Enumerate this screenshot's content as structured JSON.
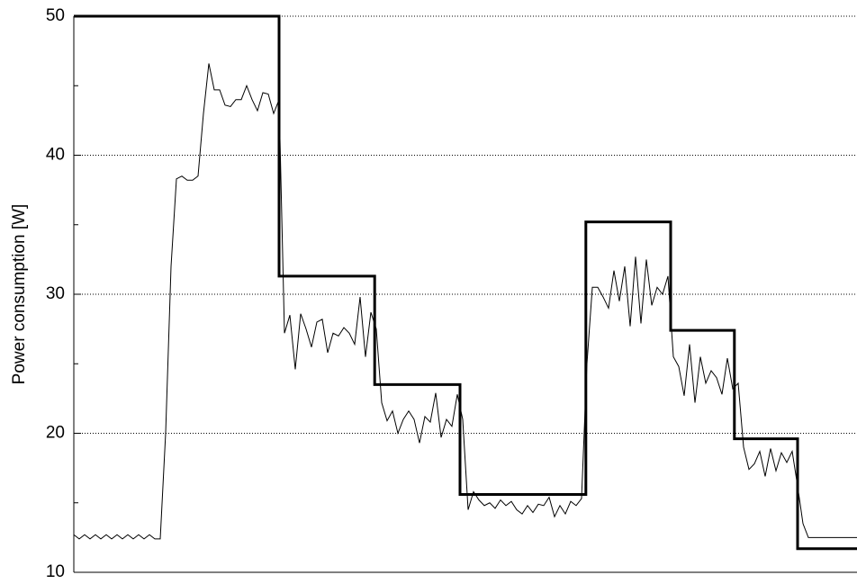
{
  "chart_data": {
    "type": "line",
    "ylabel": "Power consumption [W]",
    "xlim": [
      0,
      145
    ],
    "ylim": [
      10,
      50
    ],
    "yticks": [
      10,
      20,
      30,
      40,
      50
    ],
    "minor_yticks": [
      15,
      25,
      35,
      45
    ],
    "grid": true,
    "series": [
      {
        "color": "#000000",
        "line_width": 1,
        "values": [
          12.7,
          12.4,
          12.7,
          12.4,
          12.7,
          12.4,
          12.7,
          12.4,
          12.7,
          12.4,
          12.7,
          12.4,
          12.7,
          12.4,
          12.7,
          12.4,
          12.4,
          20,
          32,
          38.3,
          38.5,
          38.2,
          38.2,
          38.5,
          43,
          46.6,
          44.7,
          44.7,
          43.6,
          43.5,
          44,
          44,
          45,
          44,
          43.2,
          44.5,
          44.4,
          43,
          44,
          27.2,
          28.5,
          24.6,
          28.6,
          27.5,
          26.2,
          28,
          28.2,
          25.8,
          27.2,
          27,
          27.6,
          27.2,
          26.4,
          29.8,
          25.5,
          28.7,
          27.5,
          22.2,
          20.9,
          21.6,
          20,
          21,
          21.6,
          21,
          19.3,
          21.2,
          20.8,
          22.9,
          19.7,
          21,
          20.5,
          22.8,
          21,
          14.5,
          15.8,
          15.2,
          14.8,
          15.0,
          14.6,
          15.2,
          14.8,
          15.1,
          14.5,
          14.2,
          14.8,
          14.3,
          14.9,
          14.8,
          15.4,
          14.0,
          14.8,
          14.2,
          15.1,
          14.8,
          15.3,
          25,
          30.5,
          30.5,
          29.8,
          29,
          31.7,
          29.5,
          32,
          27.7,
          32.7,
          27.9,
          32.5,
          29.2,
          30.5,
          30,
          31.3,
          25.5,
          24.8,
          22.7,
          26.4,
          22.2,
          25.5,
          23.6,
          24.5,
          24,
          22.8,
          25.4,
          23.2,
          23.6,
          19,
          17.4,
          17.8,
          18.7,
          16.9,
          18.9,
          17.3,
          18.6,
          17.9,
          18.7,
          16.2,
          13.5,
          12.5,
          12.5,
          12.5,
          12.5,
          12.5,
          12.5,
          12.5,
          12.5,
          12.5,
          12.5
        ]
      },
      {
        "color": "#000000",
        "line_width": 3,
        "step": true,
        "x": [
          0,
          38,
          55.7,
          71.5,
          94.8,
          110.5,
          122.3,
          134
        ],
        "values": [
          50,
          31.3,
          23.5,
          15.6,
          35.2,
          27.4,
          19.6,
          11.7
        ]
      }
    ]
  }
}
